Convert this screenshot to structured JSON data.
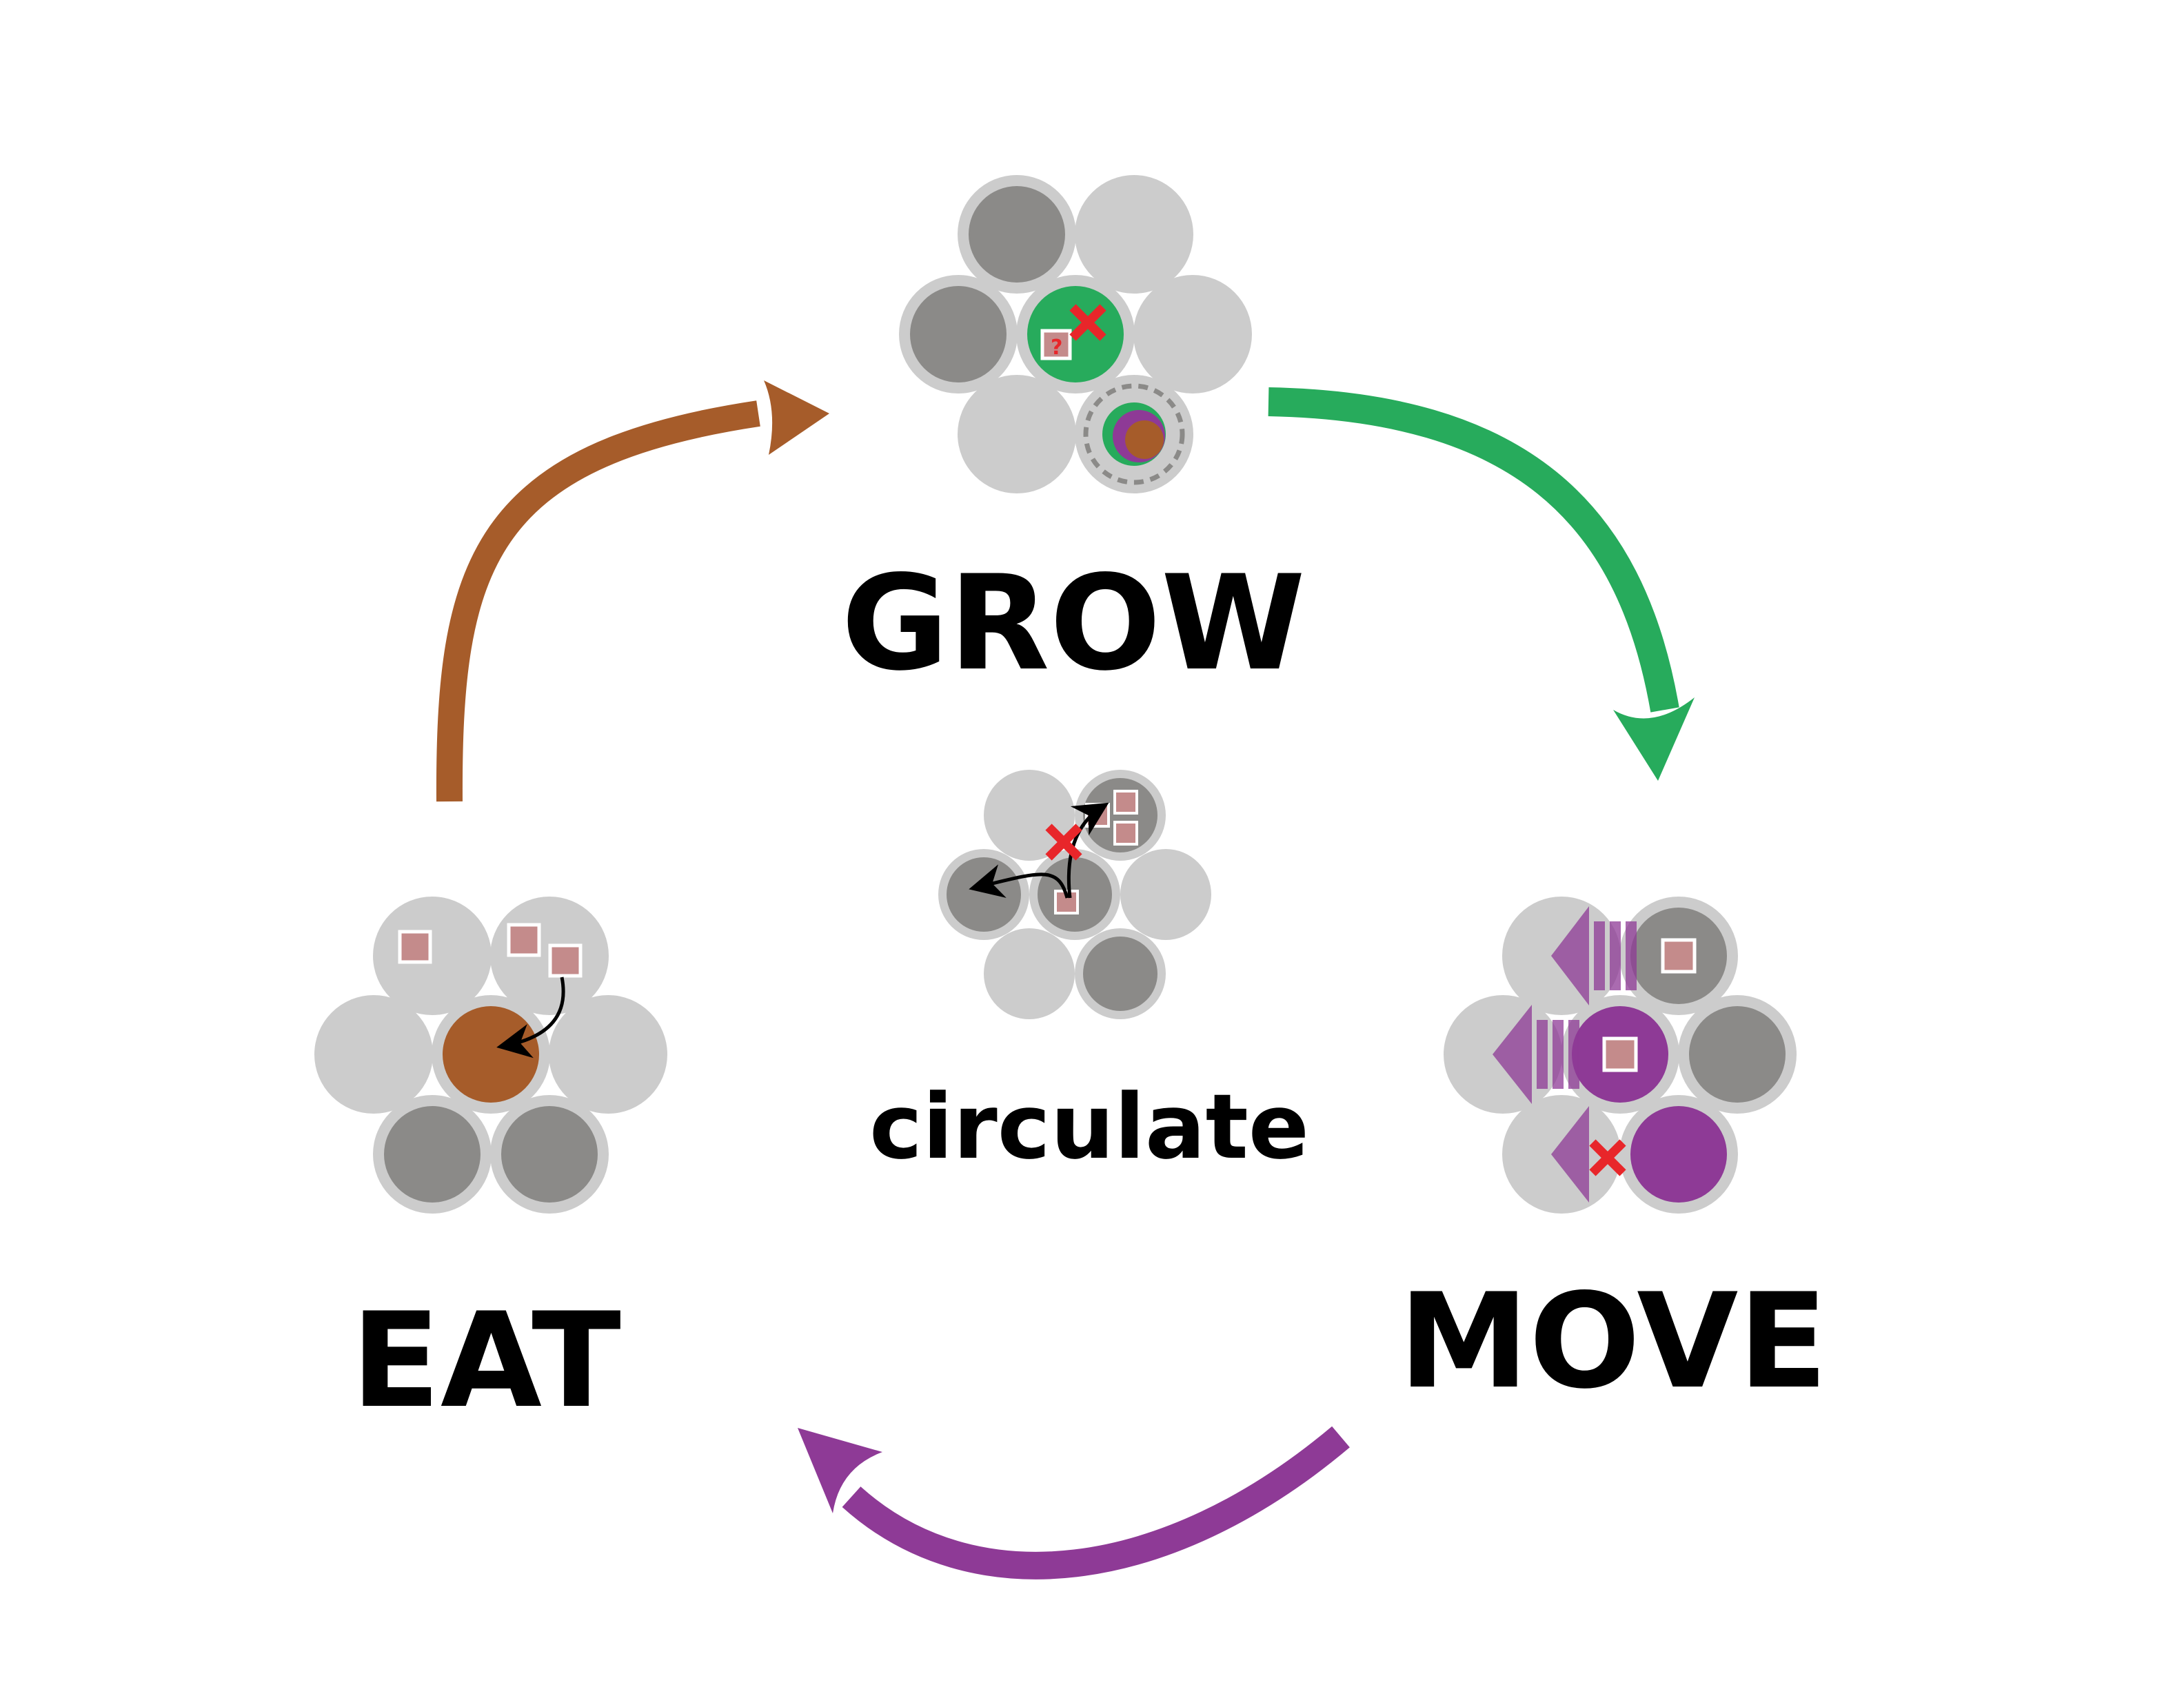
{
  "labels": {
    "grow": "GROW",
    "move": "MOVE",
    "eat": "EAT",
    "circulate": "circulate"
  },
  "colors": {
    "grow": "#27ab5c",
    "move": "#8e3a96",
    "eat": "#a65c2a",
    "cell_light": "#cccccc",
    "cell_dark": "#8b8a88",
    "resource": "#c48b8b",
    "blocked": "#e8262a"
  },
  "icons": {
    "blocked": "red-x-icon",
    "transfer": "curved-arrow-icon",
    "question": "?"
  }
}
